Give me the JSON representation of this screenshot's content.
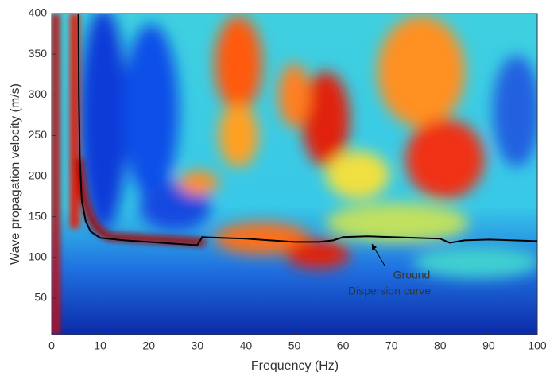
{
  "chart_data": {
    "type": "line",
    "x_label": "Frequency (Hz)",
    "y_label": "Wave propagation velocity (m/s)",
    "x": [
      5.5,
      5.6,
      5.8,
      6.2,
      7,
      8,
      10,
      15,
      20,
      25,
      30,
      31,
      35,
      40,
      45,
      50,
      55,
      58,
      60,
      65,
      70,
      75,
      80,
      82,
      85,
      90,
      95,
      100
    ],
    "values": [
      400,
      300,
      220,
      170,
      145,
      132,
      124,
      121,
      119,
      117,
      115,
      125,
      124,
      123,
      121,
      119,
      119,
      121,
      125,
      126,
      125,
      124,
      123,
      118,
      121,
      122,
      121,
      120
    ],
    "color": "#000000",
    "xlim": [
      0,
      100
    ],
    "ylim": [
      5,
      400
    ],
    "xticks": [
      0,
      10,
      20,
      30,
      40,
      50,
      60,
      70,
      80,
      90,
      100
    ],
    "yticks": [
      50,
      100,
      150,
      200,
      250,
      300,
      350,
      400
    ],
    "annotations": [
      "Ground",
      "Dispersion curve"
    ]
  }
}
